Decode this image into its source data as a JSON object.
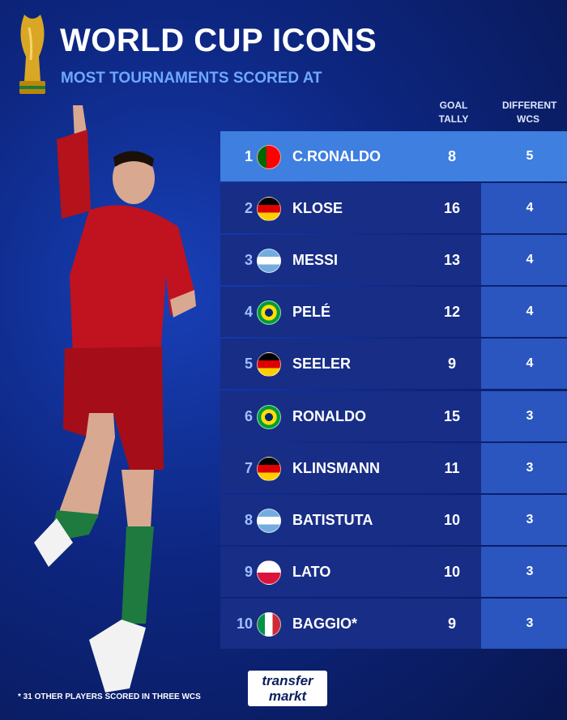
{
  "header": {
    "title": "WORLD CUP ICONS",
    "subtitle": "MOST TOURNAMENTS SCORED AT"
  },
  "table": {
    "columns": [
      "GOAL TALLY",
      "DIFFERENT WCS"
    ],
    "rows": [
      [
        1,
        "C.RONALDO",
        8,
        5
      ],
      [
        2,
        "KLOSE",
        16,
        4
      ],
      [
        3,
        "MESSI",
        13,
        4
      ],
      [
        4,
        "PELÉ",
        12,
        4
      ],
      [
        5,
        "SEELER",
        9,
        4
      ],
      [
        6,
        "RONALDO",
        15,
        3
      ],
      [
        7,
        "KLINSMANN",
        11,
        3
      ],
      [
        8,
        "BATISTUTA",
        10,
        3
      ],
      [
        9,
        "LATO",
        10,
        3
      ],
      [
        10,
        "BAGGIO*",
        9,
        3
      ]
    ]
  },
  "footnote": "* 31 OTHER PLAYERS SCORED IN THREE WCS",
  "logo": {
    "line1": "transfer",
    "line2": "markt"
  }
}
